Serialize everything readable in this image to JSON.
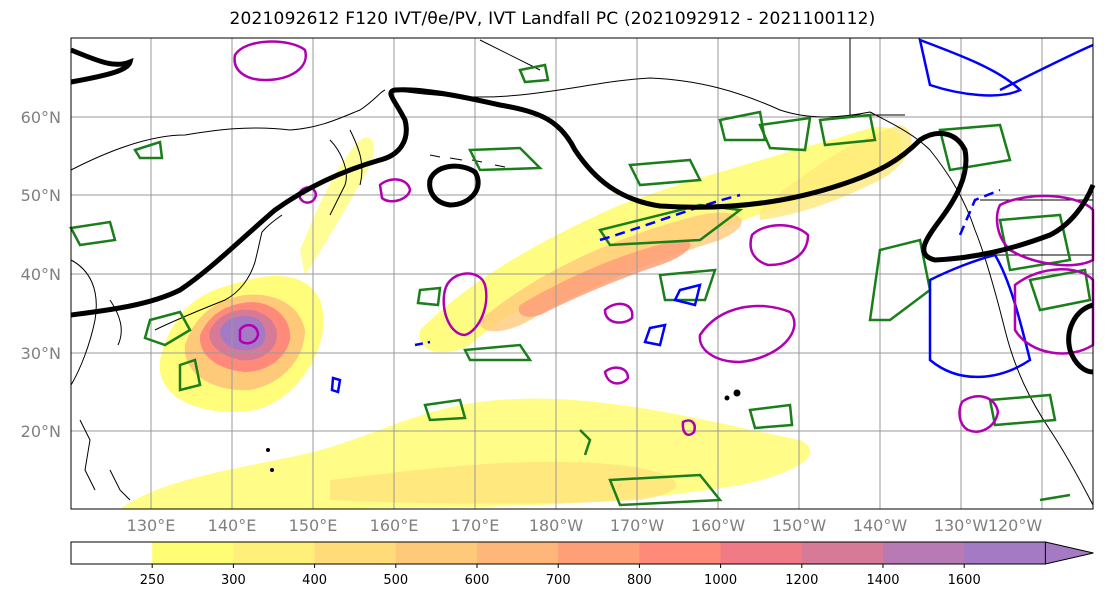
{
  "title": "2021092612 F120 IVT/θe/PV, IVT Landfall PC (2021092912 - 2021100112)",
  "lat_labels": [
    "60°N",
    "50°N",
    "40°N",
    "30°N",
    "20°N"
  ],
  "lon_labels": [
    "130°E",
    "140°E",
    "150°E",
    "160°E",
    "170°E",
    "180°W",
    "170°W",
    "160°W",
    "150°W",
    "140°W",
    "130°W",
    "120°W"
  ],
  "colorbar": {
    "levels": [
      "250",
      "300",
      "400",
      "500",
      "600",
      "700",
      "800",
      "1000",
      "1200",
      "1400",
      "1600"
    ],
    "colors": [
      "#ffffff",
      "#fffd73",
      "#fff07a",
      "#ffdc78",
      "#ffc97a",
      "#ffb679",
      "#ff9f78",
      "#ff8a7a",
      "#f07a86",
      "#d67a98",
      "#b77ab5",
      "#a47ac4"
    ]
  },
  "contour_colors": {
    "theta_e_pos": "#1a7f1a",
    "theta_e_neg": "#0000ff",
    "pv": "#b000b0",
    "pc": "#000000"
  }
}
